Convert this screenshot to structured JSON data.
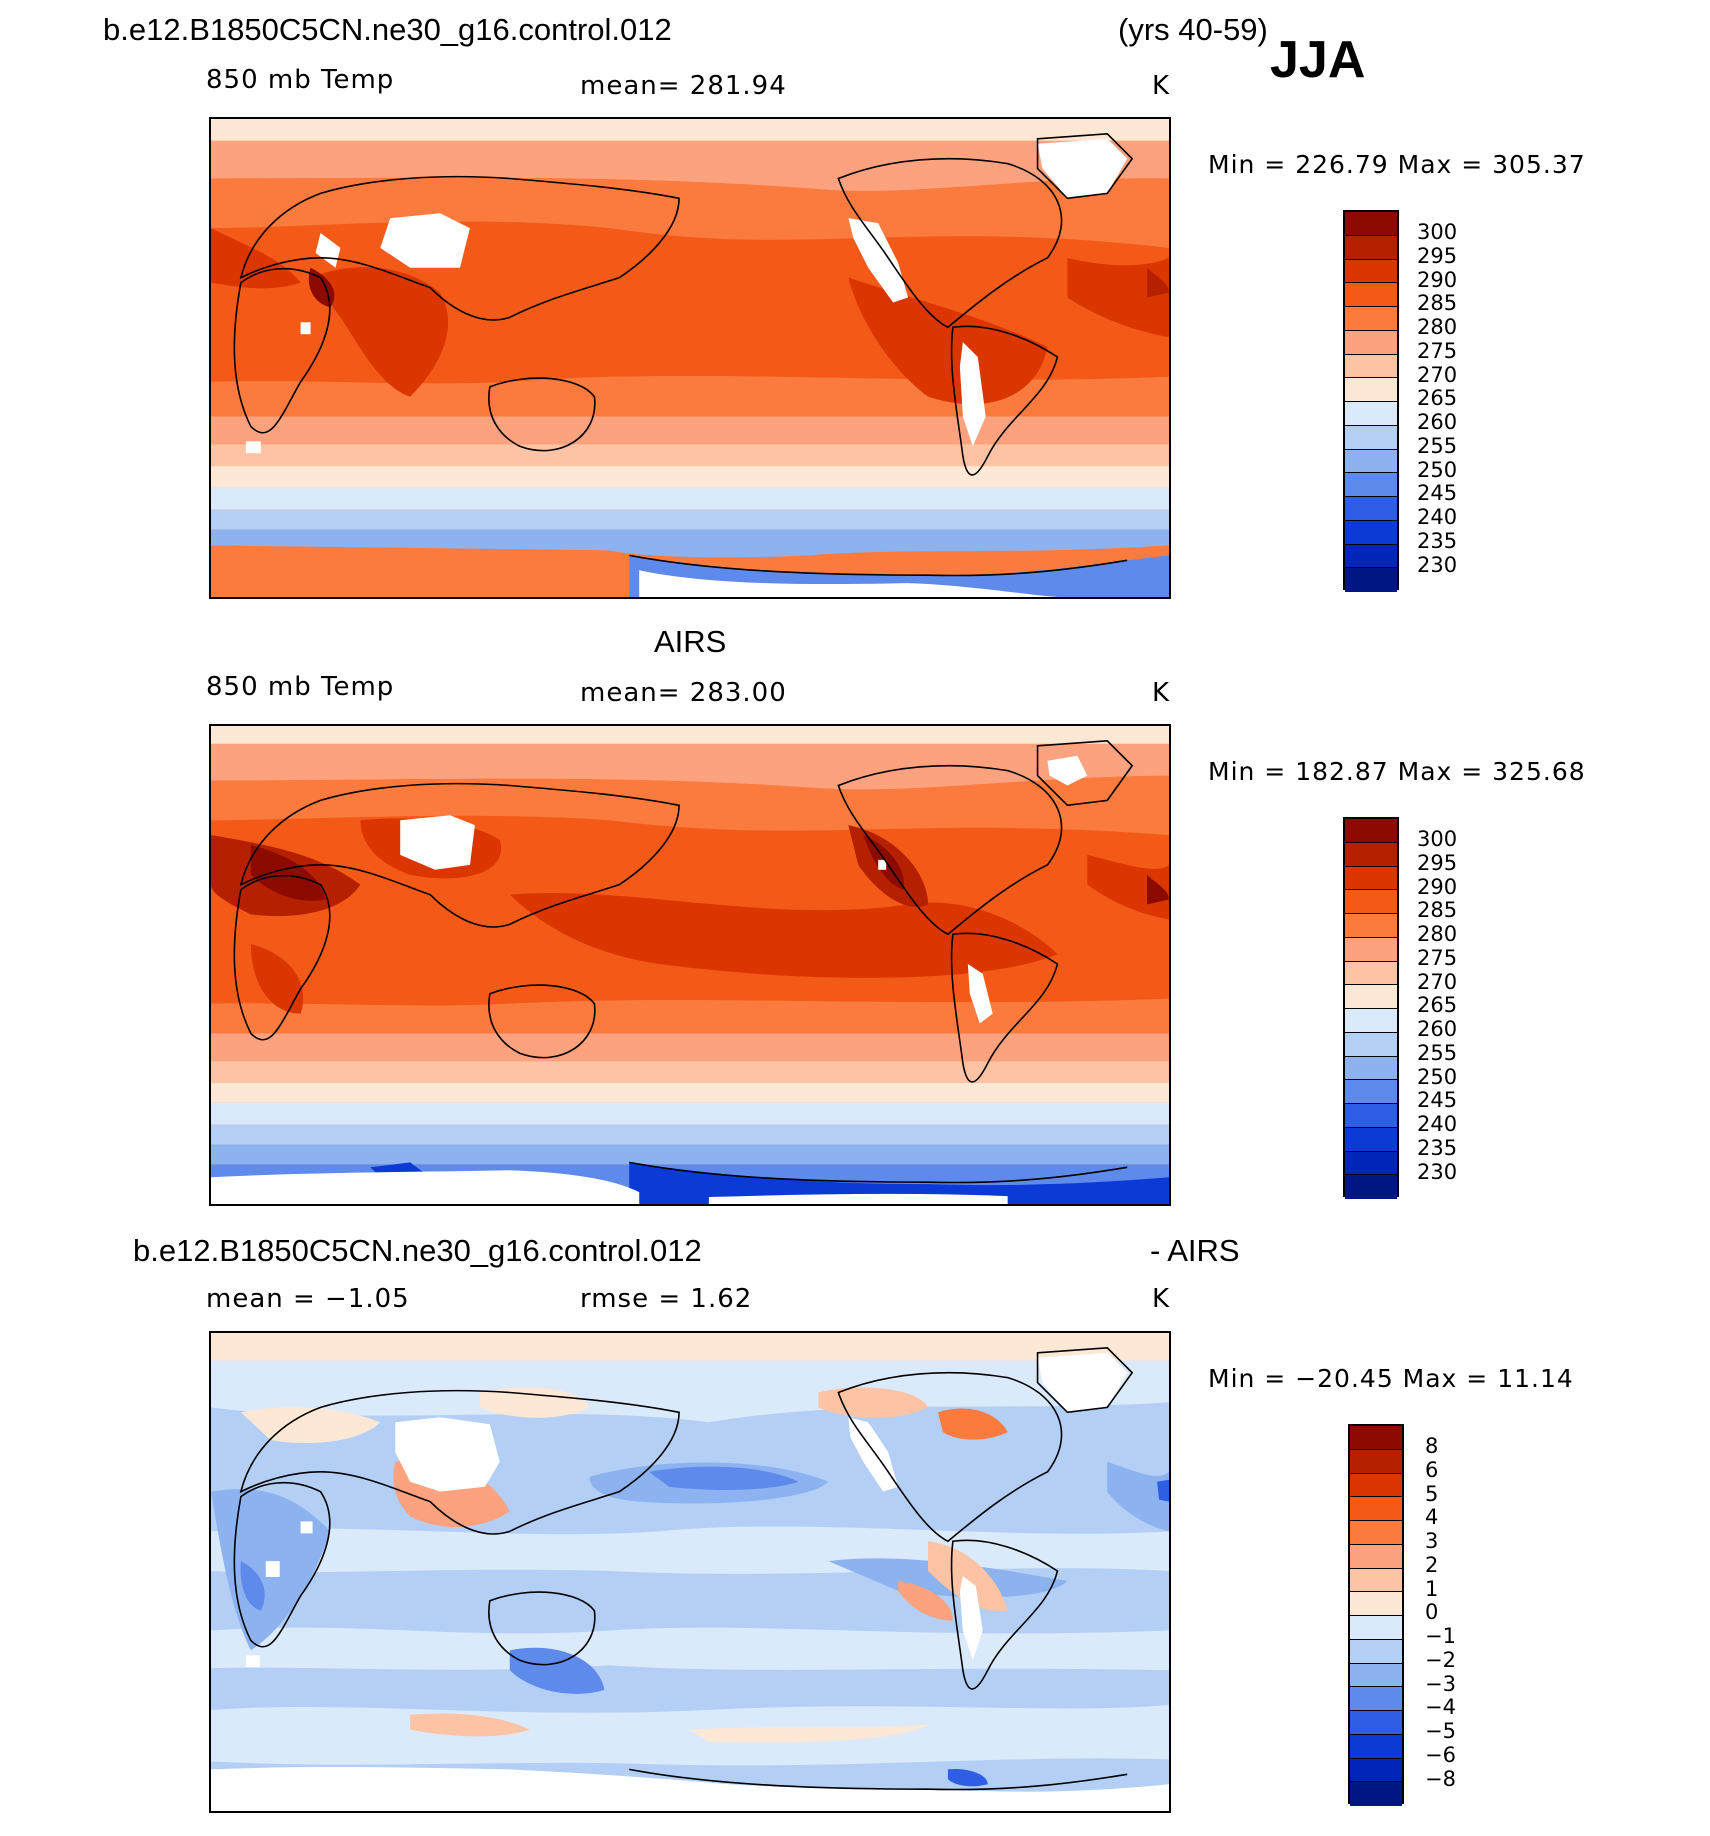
{
  "header": {
    "case_name": "b.e12.B1850C5CN.ne30_g16.control.012",
    "years": "(yrs 40-59)",
    "season": "JJA"
  },
  "panels": [
    {
      "id": "model",
      "title": "",
      "variable": "850 mb Temp",
      "stat": "mean=  281.94",
      "units": "K",
      "minmax": "Min  =  226.79  Max  =  305.37",
      "colorbar": {
        "labels": [
          "300",
          "295",
          "290",
          "285",
          "280",
          "275",
          "270",
          "265",
          "260",
          "255",
          "250",
          "245",
          "240",
          "235",
          "230"
        ],
        "colors": [
          "#8c0a00",
          "#b52100",
          "#dc3600",
          "#f35a18",
          "#fb7a3e",
          "#fca27e",
          "#fcc3a4",
          "#fde7d5",
          "#dbeafb",
          "#b3cff6",
          "#8db2f0",
          "#5e8aec",
          "#2d5ee3",
          "#0c3ad6",
          "#0023b8",
          "#001682"
        ]
      }
    },
    {
      "id": "obs",
      "title": "AIRS",
      "variable": "850 mb Temp",
      "stat": "mean=  283.00",
      "units": "K",
      "minmax": "Min  =  182.87  Max  =  325.68",
      "colorbar": {
        "labels": [
          "300",
          "295",
          "290",
          "285",
          "280",
          "275",
          "270",
          "265",
          "260",
          "255",
          "250",
          "245",
          "240",
          "235",
          "230"
        ],
        "colors": [
          "#8c0a00",
          "#b52100",
          "#dc3600",
          "#f35a18",
          "#fb7a3e",
          "#fca27e",
          "#fcc3a4",
          "#fde7d5",
          "#dbeafb",
          "#b3cff6",
          "#8db2f0",
          "#5e8aec",
          "#2d5ee3",
          "#0c3ad6",
          "#0023b8",
          "#001682"
        ]
      }
    },
    {
      "id": "diff",
      "title": "b.e12.B1850C5CN.ne30_g16.control.012",
      "title_right": "- AIRS",
      "variable": "mean =   −1.05",
      "stat": "rmse =     1.62",
      "units": "K",
      "minmax": "Min  =  −20.45  Max  =    11.14",
      "colorbar": {
        "labels": [
          "8",
          "6",
          "5",
          "4",
          "3",
          "2",
          "1",
          "0",
          "−1",
          "−2",
          "−3",
          "−4",
          "−5",
          "−6",
          "−8"
        ],
        "colors": [
          "#8c0a00",
          "#b52100",
          "#dc3600",
          "#f35a18",
          "#fb7a3e",
          "#fca27e",
          "#fcc3a4",
          "#fde7d5",
          "#dbeafb",
          "#b3cff6",
          "#8db2f0",
          "#5e8aec",
          "#2d5ee3",
          "#0c3ad6",
          "#0023b8",
          "#001682"
        ]
      }
    }
  ]
}
